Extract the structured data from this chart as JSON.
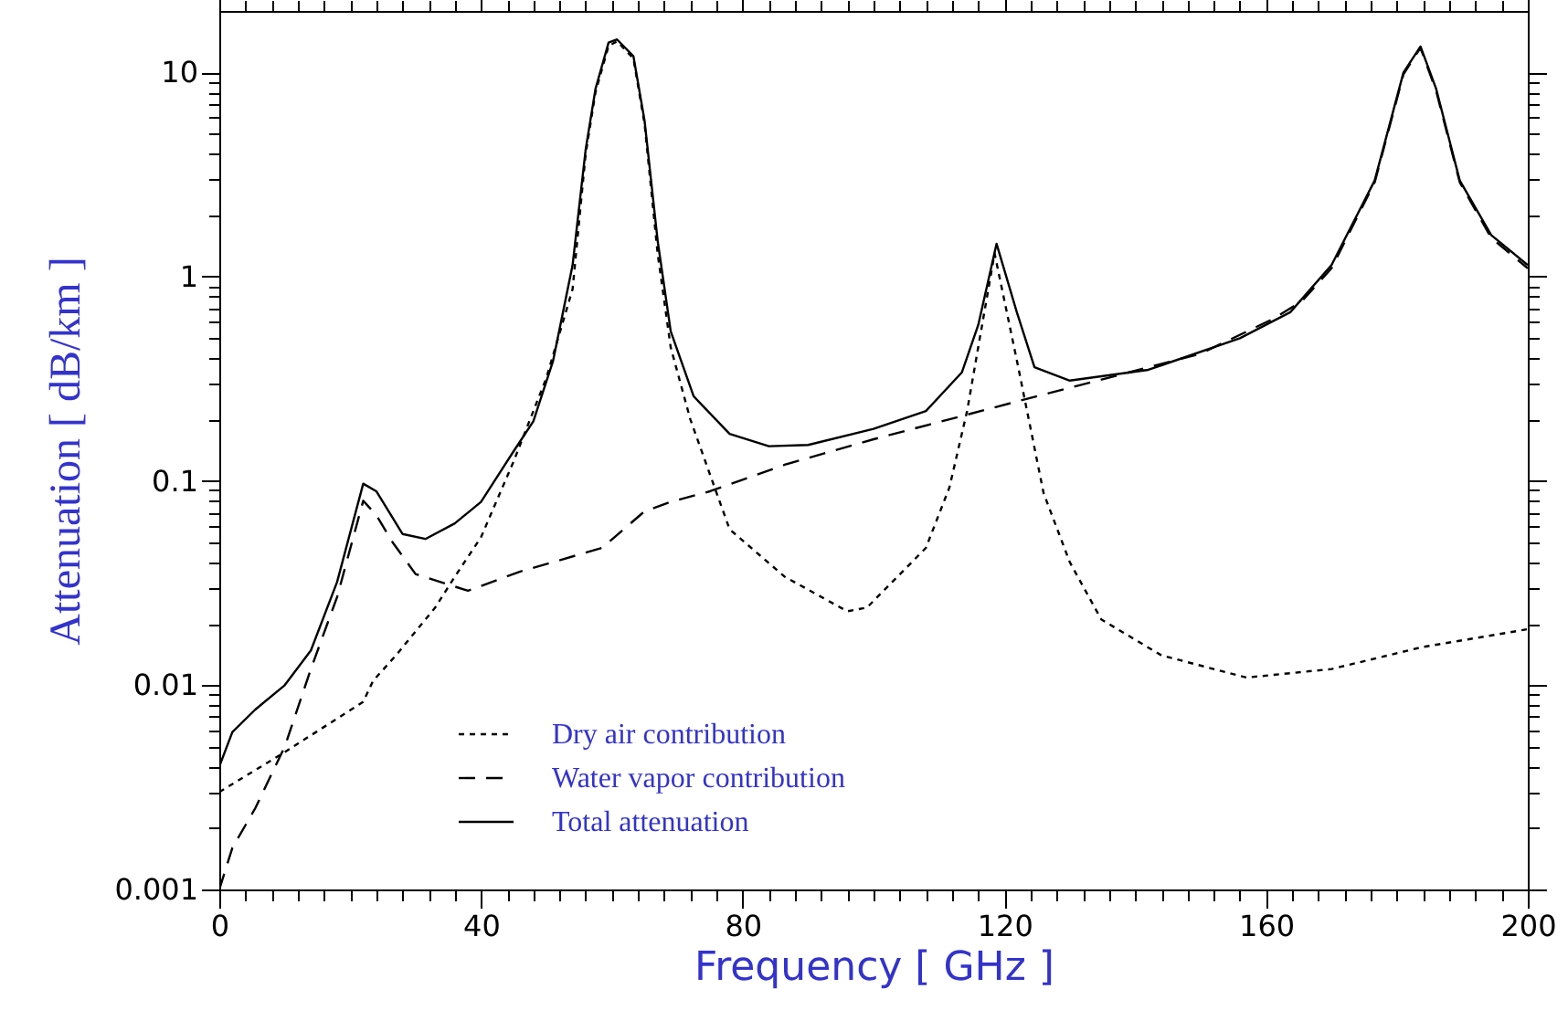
{
  "chart_data": {
    "type": "line",
    "xlabel": "Frequency  [ GHz ]",
    "ylabel": "Attenuation  [ dB/km ]",
    "log": "y",
    "xlim": [
      0,
      200
    ],
    "ylim": [
      0.001,
      20
    ],
    "xticks": [
      0,
      {
        "value": 4,
        "label": null
      },
      {
        "value": 8,
        "label": null
      },
      {
        "value": 12,
        "label": null
      },
      {
        "value": 16,
        "label": null
      },
      {
        "value": 20,
        "label": null
      },
      {
        "value": 24,
        "label": null
      },
      {
        "value": 28,
        "label": null
      },
      {
        "value": 32,
        "label": null
      },
      {
        "value": 36,
        "label": null
      },
      40,
      {
        "value": 44,
        "label": null
      },
      {
        "value": 48,
        "label": null
      },
      {
        "value": 52,
        "label": null
      },
      {
        "value": 56,
        "label": null
      },
      {
        "value": 60,
        "label": null
      },
      {
        "value": 64,
        "label": null
      },
      {
        "value": 68,
        "label": null
      },
      {
        "value": 72,
        "label": null
      },
      {
        "value": 76,
        "label": null
      },
      80,
      {
        "value": 84,
        "label": null
      },
      {
        "value": 88,
        "label": null
      },
      {
        "value": 92,
        "label": null
      },
      {
        "value": 96,
        "label": null
      },
      {
        "value": 100,
        "label": null
      },
      {
        "value": 104,
        "label": null
      },
      {
        "value": 108,
        "label": null
      },
      {
        "value": 112,
        "label": null
      },
      {
        "value": 116,
        "label": null
      },
      120,
      {
        "value": 124,
        "label": null
      },
      {
        "value": 128,
        "label": null
      },
      {
        "value": 132,
        "label": null
      },
      {
        "value": 136,
        "label": null
      },
      {
        "value": 140,
        "label": null
      },
      {
        "value": 144,
        "label": null
      },
      {
        "value": 148,
        "label": null
      },
      {
        "value": 152,
        "label": null
      },
      {
        "value": 156,
        "label": null
      },
      160,
      {
        "value": 164,
        "label": null
      },
      {
        "value": 168,
        "label": null
      },
      {
        "value": 172,
        "label": null
      },
      {
        "value": 176,
        "label": null
      },
      {
        "value": 180,
        "label": null
      },
      {
        "value": 184,
        "label": null
      },
      {
        "value": 188,
        "label": null
      },
      {
        "value": 192,
        "label": null
      },
      {
        "value": 196,
        "label": null
      },
      200
    ],
    "yticks": [
      0.001,
      {
        "value": 0.002,
        "label": null
      },
      {
        "value": 0.003,
        "label": null
      },
      {
        "value": 0.004,
        "label": null
      },
      {
        "value": 0.005,
        "label": null
      },
      {
        "value": 0.006,
        "label": null
      },
      {
        "value": 0.007,
        "label": null
      },
      {
        "value": 0.008,
        "label": null
      },
      {
        "value": 0.009,
        "label": null
      },
      0.01,
      {
        "value": 0.02,
        "label": null
      },
      {
        "value": 0.03,
        "label": null
      },
      {
        "value": 0.04,
        "label": null
      },
      {
        "value": 0.05,
        "label": null
      },
      {
        "value": 0.06,
        "label": null
      },
      {
        "value": 0.07,
        "label": null
      },
      {
        "value": 0.08,
        "label": null
      },
      {
        "value": 0.09,
        "label": null
      },
      0.1,
      {
        "value": 0.2,
        "label": null
      },
      {
        "value": 0.3,
        "label": null
      },
      {
        "value": 0.4,
        "label": null
      },
      {
        "value": 0.5,
        "label": null
      },
      {
        "value": 0.6,
        "label": null
      },
      {
        "value": 0.7,
        "label": null
      },
      {
        "value": 0.8,
        "label": null
      },
      {
        "value": 0.9,
        "label": null
      },
      1,
      {
        "value": 2,
        "label": null
      },
      {
        "value": 3,
        "label": null
      },
      {
        "value": 4,
        "label": null
      },
      {
        "value": 5,
        "label": null
      },
      {
        "value": 6,
        "label": null
      },
      {
        "value": 7,
        "label": null
      },
      {
        "value": 8,
        "label": null
      },
      {
        "value": 9,
        "label": null
      },
      10
    ],
    "grid": false,
    "legend": "bottom left",
    "marker": "none",
    "series": [
      {
        "name": "Dry air contribution",
        "color": "#000000",
        "line_style": "dotted",
        "x": [
          0,
          10,
          22,
          23.5,
          27,
          33,
          36,
          40,
          45,
          50,
          54,
          56,
          57.5,
          59.5,
          60.8,
          63.3,
          65,
          67,
          69,
          72,
          75.4,
          78,
          86.4,
          96,
          99,
          108,
          111.6,
          114.3,
          118.5,
          121.9,
          126,
          130,
          134.8,
          144,
          157,
          170,
          184,
          200
        ],
        "values": [
          0.003,
          0.0047,
          0.0083,
          0.0105,
          0.014,
          0.024,
          0.034,
          0.053,
          0.125,
          0.32,
          0.87,
          4,
          8,
          13.5,
          14.2,
          11.7,
          5.6,
          1.3,
          0.45,
          0.2,
          0.099,
          0.058,
          0.034,
          0.023,
          0.024,
          0.047,
          0.093,
          0.22,
          1.3,
          0.39,
          0.087,
          0.04,
          0.021,
          0.014,
          0.0109,
          0.012,
          0.0154,
          0.0188
        ]
      },
      {
        "name": "Water vapor contribution",
        "color": "#000000",
        "line_style": "dashed",
        "x": [
          0,
          2,
          5.5,
          10,
          14,
          18,
          22,
          24,
          26.5,
          30,
          38,
          46,
          58.5,
          65,
          69,
          75,
          86.4,
          100,
          114,
          125,
          137.5,
          150,
          161,
          165.5,
          170,
          176.6,
          181,
          183.6,
          186,
          189.6,
          194.4,
          200
        ],
        "values": [
          0.001,
          0.0016,
          0.0025,
          0.005,
          0.012,
          0.027,
          0.08,
          0.068,
          0.05,
          0.035,
          0.029,
          0.036,
          0.047,
          0.071,
          0.079,
          0.089,
          0.12,
          0.16,
          0.21,
          0.26,
          0.33,
          0.42,
          0.62,
          0.76,
          1.1,
          2.9,
          9.8,
          13.2,
          8.1,
          2.9,
          1.55,
          1.1
        ]
      },
      {
        "name": "Total attenuation",
        "color": "#000000",
        "line_style": "solid",
        "x": [
          0,
          2,
          5.5,
          10,
          14,
          18,
          22,
          24,
          28,
          31.5,
          36,
          40,
          45,
          48,
          51,
          54,
          56,
          57.5,
          59.5,
          60.8,
          63.3,
          65,
          67,
          69,
          72.5,
          78,
          84,
          90,
          100,
          108,
          113.5,
          116,
          118.8,
          121.9,
          124.6,
          130,
          142,
          156,
          163.7,
          170,
          176.6,
          181,
          183.6,
          186,
          189.6,
          194.4,
          200
        ],
        "values": [
          0.004,
          0.0059,
          0.0076,
          0.01,
          0.0148,
          0.032,
          0.097,
          0.089,
          0.055,
          0.052,
          0.062,
          0.079,
          0.14,
          0.196,
          0.385,
          1.14,
          4.2,
          8.3,
          14,
          14.5,
          12,
          5.8,
          1.5,
          0.54,
          0.26,
          0.17,
          0.148,
          0.15,
          0.18,
          0.22,
          0.34,
          0.58,
          1.45,
          0.67,
          0.36,
          0.31,
          0.35,
          0.5,
          0.67,
          1.14,
          2.96,
          10,
          13.4,
          8.3,
          2.96,
          1.6,
          1.14
        ]
      }
    ]
  }
}
